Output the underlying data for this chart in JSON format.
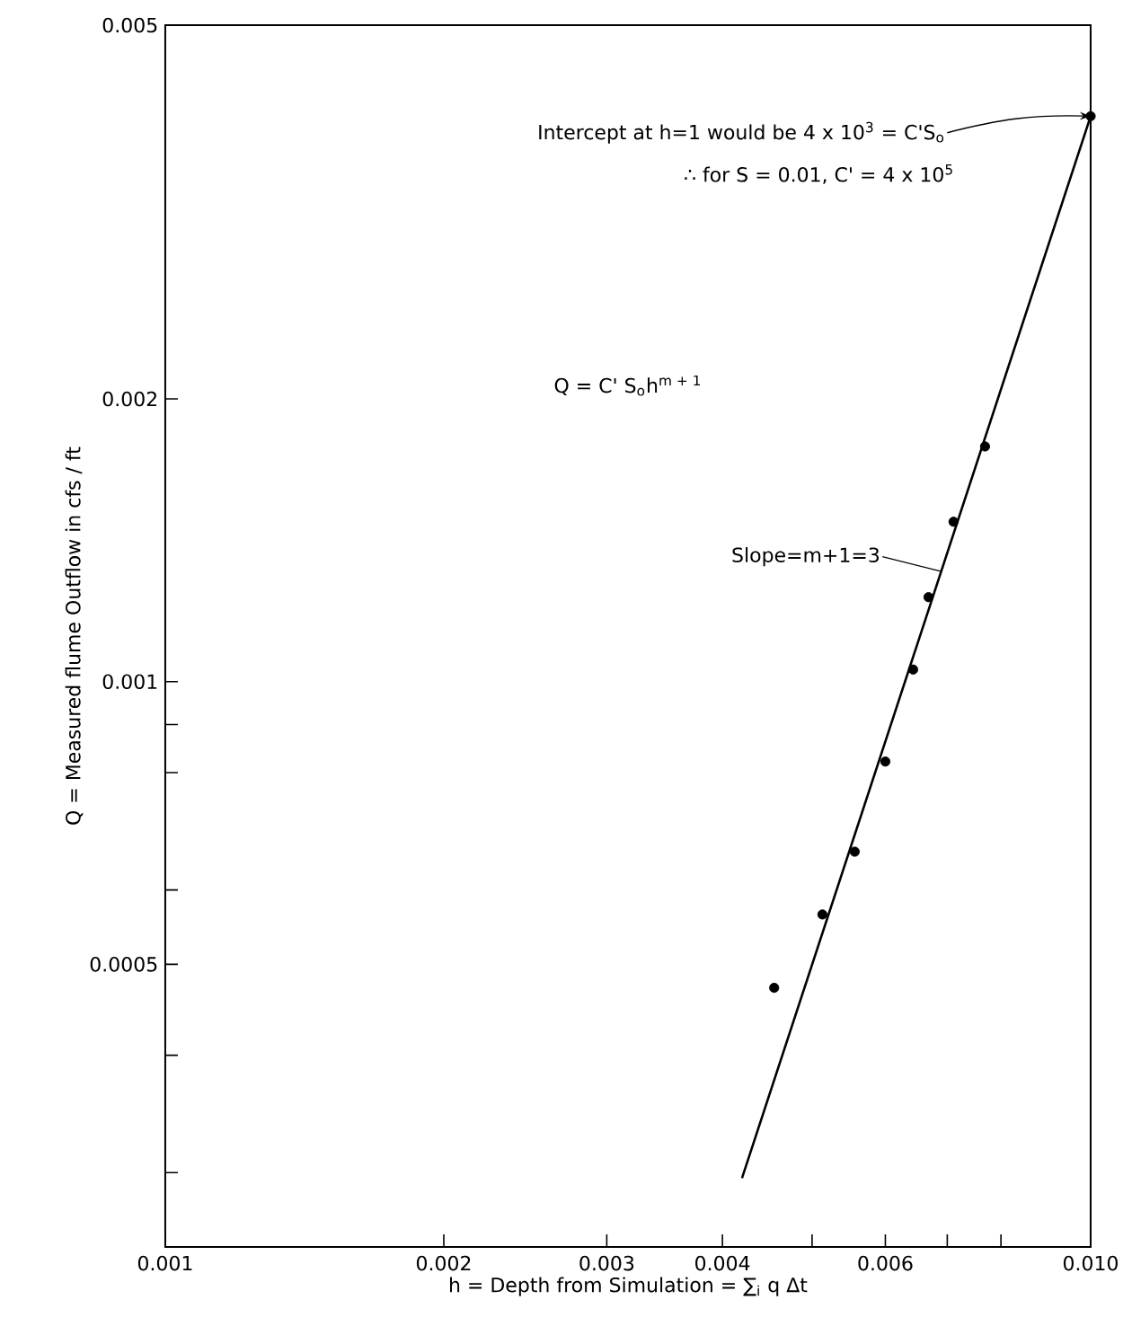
{
  "chart_data": {
    "type": "scatter",
    "xlabel": "h = Depth from Simulation = ∑$_{i}$ q Δt",
    "ylabel": "Q = Measured flume Outflow in cfs / ft",
    "log": "xy",
    "grid": false,
    "marker": "circle",
    "xlim": [
      0.001,
      0.01
    ],
    "ylim": [
      0.00025,
      0.005
    ],
    "xticks": [
      0.001,
      0.002,
      0.003,
      0.004,
      {
        "value": 0.005,
        "label": null
      },
      0.006,
      {
        "value": 0.007,
        "label": null
      },
      {
        "value": 0.008,
        "label": null
      },
      {
        "value": 0.01,
        "label": "0.010"
      }
    ],
    "yticks": [
      {
        "value": 0.0003,
        "label": null
      },
      {
        "value": 0.0004,
        "label": null
      },
      0.0005,
      {
        "value": 0.0006,
        "label": null
      },
      {
        "value": 0.0008,
        "label": null
      },
      {
        "value": 0.0009,
        "label": null
      },
      0.001,
      0.002,
      0.005
    ],
    "series": [
      {
        "color": "#000000",
        "x": [
          0.00455,
          0.00513,
          0.00556,
          0.006,
          0.00643,
          0.00668,
          0.00711,
          0.00769,
          0.01
        ],
        "values": [
          0.000472,
          0.000565,
          0.000659,
          0.000822,
          0.00103,
          0.00123,
          0.00148,
          0.00178,
          0.004
        ]
      },
      {
        "type": "line",
        "color": "#000000",
        "marker": "none",
        "line_style": "solid",
        "x": [
          0.0042,
          0.01
        ],
        "values": [
          0.000296,
          0.004
        ]
      }
    ],
    "annotations": [
      {
        "text": "Intercept at h=1 would be 4 x 10$^{3}$ = C'S$_{o}$",
        "x": 0.01,
        "y": 0.004
      },
      "∴ for S = 0.01, C' = 4 x 10$^{5}$",
      "Q = C' S$_{o}$h$^{m + 1}$",
      {
        "text": "Slope=m+1=3",
        "x": 0.0069,
        "y": 0.00131
      }
    ]
  }
}
